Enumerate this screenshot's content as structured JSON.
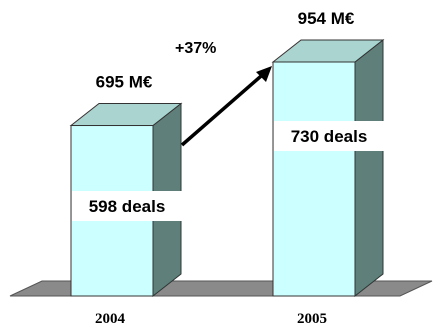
{
  "chart_data": {
    "type": "bar",
    "title": "",
    "xlabel": "",
    "ylabel": "",
    "categories": [
      "2004",
      "2005"
    ],
    "series": [
      {
        "values": [
          695,
          954
        ],
        "value_labels": [
          "695 M€",
          "954 M€"
        ],
        "deal_labels": [
          "598 deals",
          "730 deals"
        ],
        "deals": [
          598,
          730
        ]
      }
    ],
    "ylim": [
      0,
      1000
    ],
    "grid": false,
    "legend": "none",
    "growth_label": "+37%",
    "colors": {
      "bar_front": "#ccffff",
      "bar_side": "#5f7f7a",
      "bar_top": "#a9d4cf",
      "floor": "#8a8a8a",
      "arrow": "#000000",
      "label_box": "#ffffff"
    }
  }
}
